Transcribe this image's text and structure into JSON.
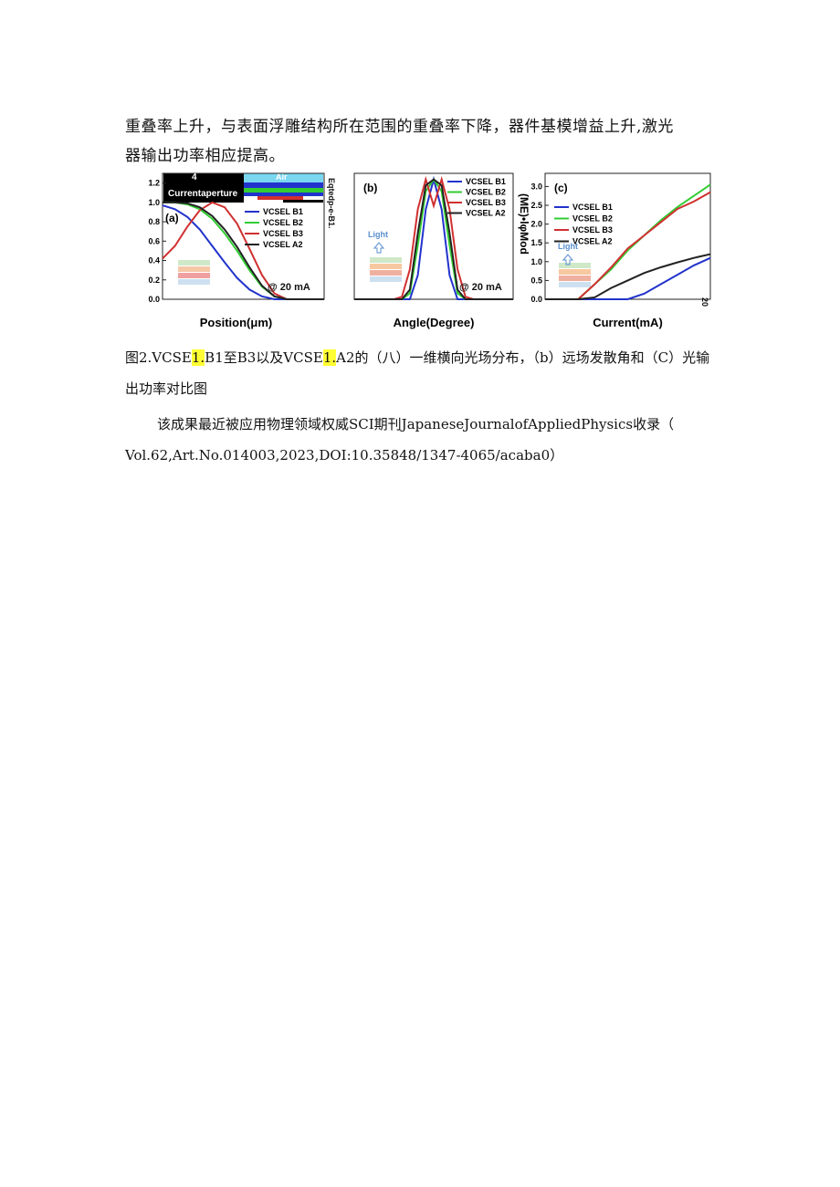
{
  "body_lines": [
    "重叠率上升，与表面浮雕结构所在范围的重叠率下降，器件基模增益上升,激光",
    "器输出功率相应提高。"
  ],
  "chart_data": [
    {
      "type": "line",
      "panel_label": "(a)",
      "xlabel": "Position(μm)",
      "ylim": [
        0,
        1.3
      ],
      "yticks": [
        {
          "value": 0,
          "label": "0.0"
        },
        0.2,
        0.4,
        0.6,
        0.8,
        {
          "value": 1,
          "label": "1.0"
        },
        1.2
      ],
      "annotations": [
        "4",
        "Air",
        "Currentaperture",
        "@ 20 mA",
        "Eqtedp-e-B1."
      ],
      "series": [
        {
          "name": "VCSEL B1",
          "color": "#2233cc",
          "values": [
            0.97,
            0.93,
            0.85,
            0.72,
            0.55,
            0.38,
            0.22,
            0.1,
            0.03,
            0,
            0,
            0,
            0,
            0
          ]
        },
        {
          "name": "VCSEL B2",
          "color": "#33cc33",
          "values": [
            1,
            1,
            0.98,
            0.93,
            0.83,
            0.68,
            0.5,
            0.3,
            0.13,
            0.03,
            0,
            0,
            0,
            0
          ]
        },
        {
          "name": "VCSEL B3",
          "color": "#d03030",
          "values": [
            0.42,
            0.55,
            0.75,
            0.92,
            1,
            0.95,
            0.78,
            0.52,
            0.25,
            0.06,
            0,
            0,
            0,
            0
          ]
        },
        {
          "name": "VCSEL A2",
          "color": "#222222",
          "values": [
            1,
            1,
            0.99,
            0.95,
            0.86,
            0.72,
            0.54,
            0.33,
            0.14,
            0.03,
            0,
            0,
            0,
            0
          ]
        }
      ]
    },
    {
      "type": "line",
      "panel_label": "(b)",
      "xlabel": "Angle(Degree)",
      "ylim": [
        0,
        1.05
      ],
      "annotations": [
        "Light",
        "@ 20 mA"
      ],
      "series": [
        {
          "name": "VCSEL B1",
          "color": "#2233cc",
          "values": [
            0,
            0,
            0,
            0,
            0,
            0,
            0,
            0,
            0.2,
            0.75,
            1,
            0.75,
            0.2,
            0,
            0,
            0,
            0,
            0,
            0,
            0,
            0
          ]
        },
        {
          "name": "VCSEL B2",
          "color": "#33cc33",
          "values": [
            0,
            0,
            0,
            0,
            0,
            0,
            0,
            0.05,
            0.45,
            0.9,
            1,
            0.9,
            0.45,
            0.05,
            0,
            0,
            0,
            0,
            0,
            0,
            0
          ]
        },
        {
          "name": "VCSEL B3",
          "color": "#d03030",
          "values": [
            0,
            0,
            0,
            0,
            0,
            0,
            0.02,
            0.25,
            0.75,
            1,
            0.78,
            1,
            0.75,
            0.25,
            0.02,
            0,
            0,
            0,
            0,
            0,
            0
          ]
        },
        {
          "name": "VCSEL A2",
          "color": "#222222",
          "values": [
            0,
            0,
            0,
            0,
            0,
            0,
            0,
            0.08,
            0.55,
            0.95,
            1,
            0.95,
            0.55,
            0.08,
            0,
            0,
            0,
            0,
            0,
            0,
            0
          ]
        }
      ]
    },
    {
      "type": "line",
      "panel_label": "(c)",
      "xlabel": "Current(mA)",
      "ylabel": "(ME)•lφMod",
      "ylim": [
        0,
        3.35
      ],
      "yticks": [
        {
          "value": 0,
          "label": "0.0"
        },
        0.5,
        {
          "value": 1,
          "label": "1.0"
        },
        1.5,
        {
          "value": 2,
          "label": "2.0"
        },
        2.5,
        {
          "value": 3,
          "label": "3.0"
        }
      ],
      "annotations": [
        "Light",
        "20"
      ],
      "series": [
        {
          "name": "VCSEL B1",
          "color": "#2233cc",
          "values": [
            0,
            0,
            0,
            0,
            0,
            0,
            0.15,
            0.4,
            0.65,
            0.9,
            1.1
          ]
        },
        {
          "name": "VCSEL B2",
          "color": "#33cc33",
          "values": [
            0,
            0,
            0,
            0.4,
            0.8,
            1.3,
            1.7,
            2.1,
            2.45,
            2.75,
            3.05
          ]
        },
        {
          "name": "VCSEL B3",
          "color": "#d03030",
          "values": [
            0,
            0,
            0,
            0.4,
            0.85,
            1.35,
            1.7,
            2.05,
            2.4,
            2.6,
            2.85
          ]
        },
        {
          "name": "VCSEL A2",
          "color": "#222222",
          "values": [
            0,
            0,
            0,
            0.05,
            0.3,
            0.5,
            0.7,
            0.85,
            0.98,
            1.1,
            1.2
          ]
        }
      ]
    }
  ],
  "caption": {
    "parts": [
      "图2.VCSE",
      "1.",
      "B1至B3以及VCSE",
      "1.",
      "A2的（八）一维横向光场分布，（b）远场发散角和（C）光输"
    ],
    "line2": "出功率对比图"
  },
  "paragraph_lines": [
    "该成果最近被应用物理领域权威SCI期刊JapaneseJournalofAppliedPhysics收录（",
    "Vol.62,Art.No.014003,2023,DOI:10.35848/1347-4065/acaba0）"
  ]
}
